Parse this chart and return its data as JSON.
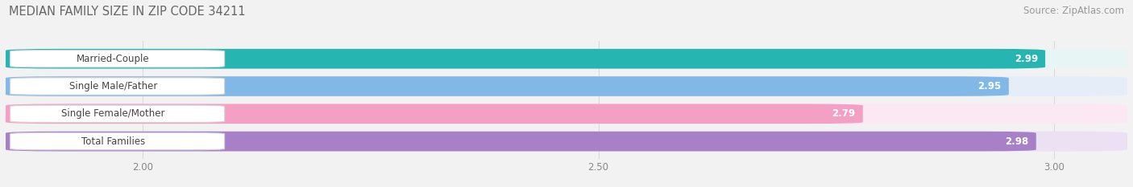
{
  "title": "MEDIAN FAMILY SIZE IN ZIP CODE 34211",
  "source": "Source: ZipAtlas.com",
  "categories": [
    "Married-Couple",
    "Single Male/Father",
    "Single Female/Mother",
    "Total Families"
  ],
  "values": [
    2.99,
    2.95,
    2.79,
    2.98
  ],
  "bar_colors": [
    "#27b5b2",
    "#82b8e8",
    "#f4a0c5",
    "#a880c8"
  ],
  "bar_bg_colors": [
    "#e8f5f5",
    "#e5eef8",
    "#fce8f2",
    "#ece0f5"
  ],
  "gap_color": "#f0f0f0",
  "xlim": [
    1.85,
    3.08
  ],
  "xticks": [
    2.0,
    2.5,
    3.0
  ],
  "xticklabels": [
    "2.00",
    "2.50",
    "3.00"
  ],
  "bar_height": 0.72,
  "bar_gap": 0.28,
  "figsize": [
    14.06,
    2.33
  ],
  "dpi": 100,
  "label_fontsize": 8.5,
  "value_fontsize": 8.5,
  "title_fontsize": 10.5,
  "source_fontsize": 8.5,
  "bg_color": "#f2f2f2"
}
